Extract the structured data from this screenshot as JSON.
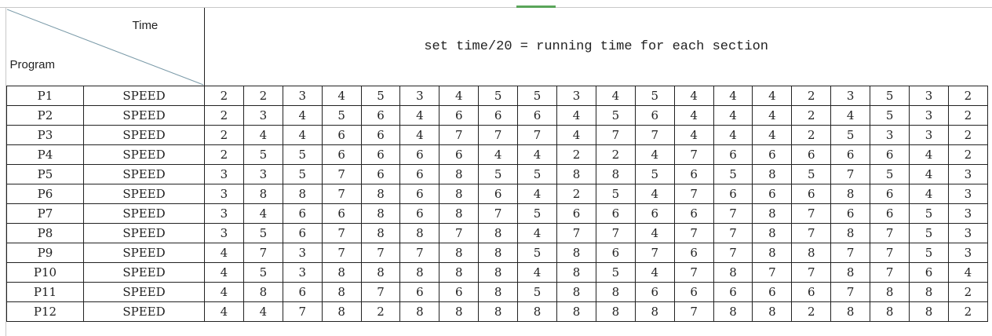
{
  "header": {
    "corner_top_label": "Time",
    "corner_bottom_label": "Program",
    "note": "set time/20 = running time for each section"
  },
  "rows": [
    {
      "program": "P1",
      "param": "SPEED",
      "values": [
        2,
        2,
        3,
        4,
        5,
        3,
        4,
        5,
        5,
        3,
        4,
        5,
        4,
        4,
        4,
        2,
        3,
        5,
        3,
        2
      ]
    },
    {
      "program": "P2",
      "param": "SPEED",
      "values": [
        2,
        3,
        4,
        5,
        6,
        4,
        6,
        6,
        6,
        4,
        5,
        6,
        4,
        4,
        4,
        2,
        4,
        5,
        3,
        2
      ]
    },
    {
      "program": "P3",
      "param": "SPEED",
      "values": [
        2,
        4,
        4,
        6,
        6,
        4,
        7,
        7,
        7,
        4,
        7,
        7,
        4,
        4,
        4,
        2,
        5,
        3,
        3,
        2
      ]
    },
    {
      "program": "P4",
      "param": "SPEED",
      "values": [
        2,
        5,
        5,
        6,
        6,
        6,
        6,
        4,
        4,
        2,
        2,
        4,
        7,
        6,
        6,
        6,
        6,
        6,
        4,
        2
      ]
    },
    {
      "program": "P5",
      "param": "SPEED",
      "values": [
        3,
        3,
        5,
        7,
        6,
        6,
        8,
        5,
        5,
        8,
        8,
        5,
        6,
        5,
        8,
        5,
        7,
        5,
        4,
        3
      ]
    },
    {
      "program": "P6",
      "param": "SPEED",
      "values": [
        3,
        8,
        8,
        7,
        8,
        6,
        8,
        6,
        4,
        2,
        5,
        4,
        7,
        6,
        6,
        6,
        8,
        6,
        4,
        3
      ]
    },
    {
      "program": "P7",
      "param": "SPEED",
      "values": [
        3,
        4,
        6,
        6,
        8,
        6,
        8,
        7,
        5,
        6,
        6,
        6,
        6,
        7,
        8,
        7,
        6,
        6,
        5,
        3
      ]
    },
    {
      "program": "P8",
      "param": "SPEED",
      "values": [
        3,
        5,
        6,
        7,
        8,
        8,
        7,
        8,
        4,
        7,
        7,
        4,
        7,
        7,
        8,
        7,
        8,
        7,
        5,
        3
      ]
    },
    {
      "program": "P9",
      "param": "SPEED",
      "values": [
        4,
        7,
        3,
        7,
        7,
        7,
        8,
        8,
        5,
        8,
        6,
        7,
        6,
        7,
        8,
        8,
        7,
        7,
        5,
        3
      ]
    },
    {
      "program": "P10",
      "param": "SPEED",
      "values": [
        4,
        5,
        3,
        8,
        8,
        8,
        8,
        8,
        4,
        8,
        5,
        4,
        7,
        8,
        7,
        7,
        8,
        7,
        6,
        4
      ]
    },
    {
      "program": "P11",
      "param": "SPEED",
      "values": [
        4,
        8,
        6,
        8,
        7,
        6,
        6,
        8,
        5,
        8,
        8,
        6,
        6,
        6,
        6,
        6,
        7,
        8,
        8,
        2
      ]
    },
    {
      "program": "P12",
      "param": "SPEED",
      "values": [
        4,
        4,
        7,
        8,
        2,
        8,
        8,
        8,
        8,
        8,
        8,
        8,
        7,
        8,
        8,
        2,
        8,
        8,
        8,
        2
      ]
    }
  ]
}
